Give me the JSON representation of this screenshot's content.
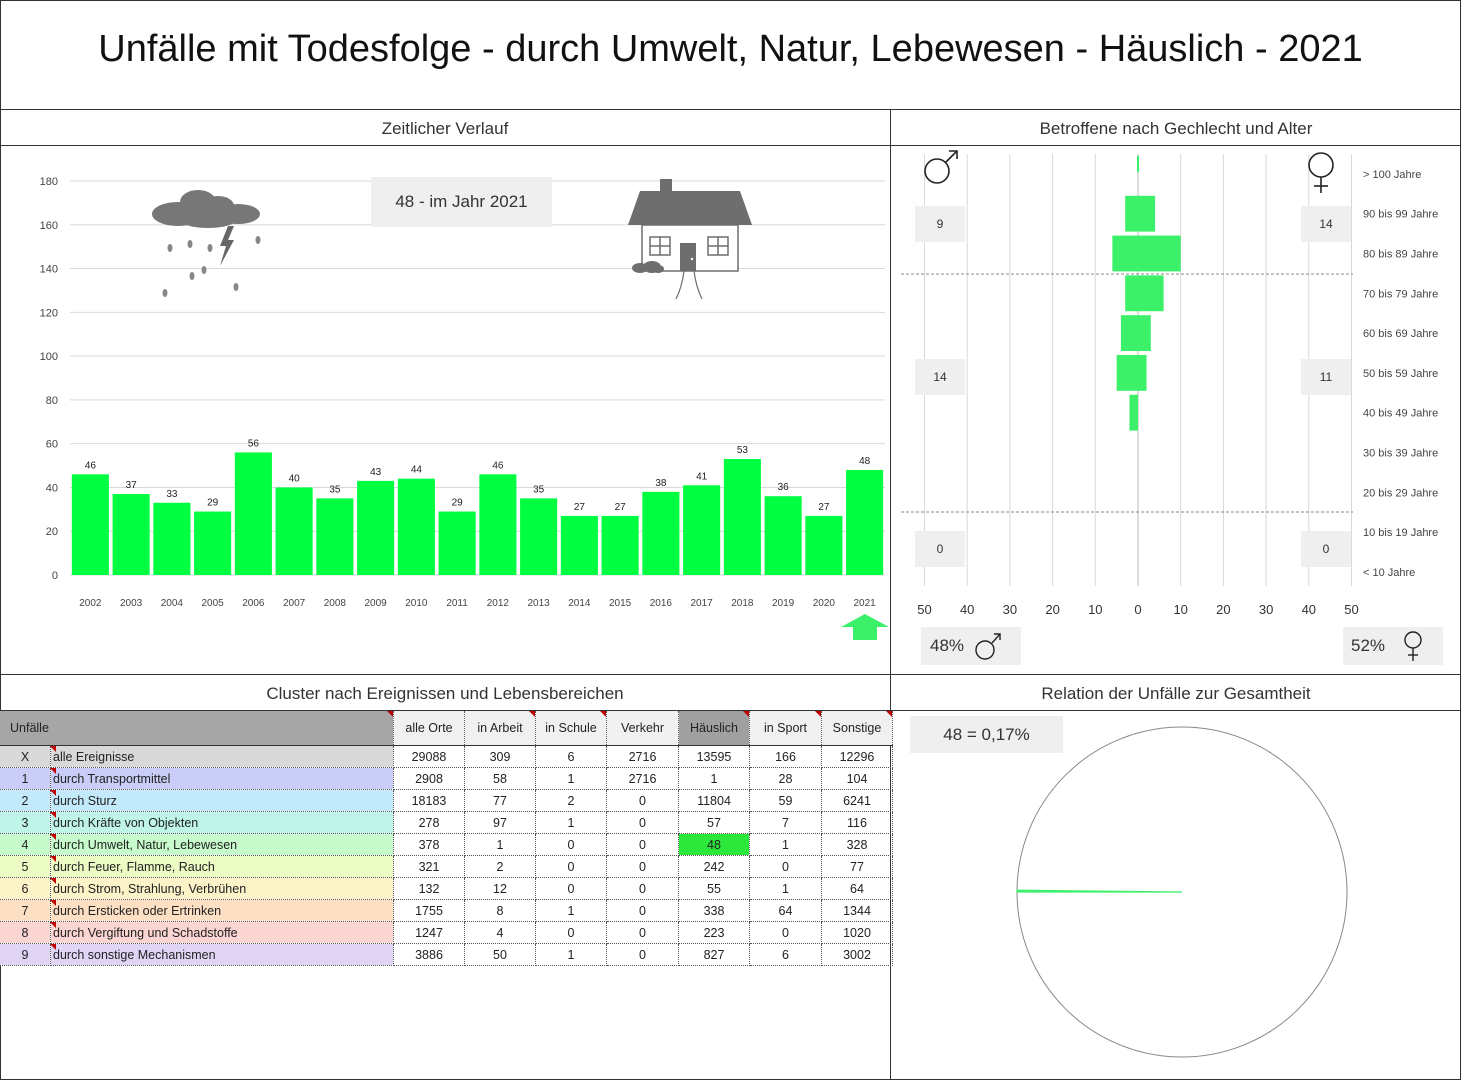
{
  "title": "Unfälle mit Todesfolge - durch Umwelt, Natur, Lebewesen - Häuslich - 2021",
  "sections": {
    "timeline": "Zeitlicher Verlauf",
    "pyramid": "Betroffene nach Gechlecht und Alter",
    "cluster": "Cluster nach Ereignissen und Lebensbereichen",
    "relation": "Relation der Unfälle zur Gesamtheit"
  },
  "colors": {
    "bar": "#00ff40",
    "pyramid": "#3cf06a",
    "highlight": "#2ce83a",
    "arrow": "#3cf06a",
    "icon_grey": "#6e6e6e"
  },
  "timeline_callout": "48 - im Jahr 2021",
  "icons": {
    "weather": "storm-cloud-icon",
    "house": "house-icon",
    "arrow": "up-arrow-icon",
    "male": "male-symbol-icon",
    "female": "female-symbol-icon"
  },
  "chart_data": [
    {
      "type": "bar",
      "categories": [
        "2002",
        "2003",
        "2004",
        "2005",
        "2006",
        "2007",
        "2008",
        "2009",
        "2010",
        "2011",
        "2012",
        "2013",
        "2014",
        "2015",
        "2016",
        "2017",
        "2018",
        "2019",
        "2020",
        "2021"
      ],
      "values": [
        46,
        37,
        33,
        29,
        56,
        40,
        35,
        43,
        44,
        29,
        46,
        35,
        27,
        27,
        38,
        41,
        53,
        36,
        27,
        48
      ],
      "ylim": [
        0,
        180
      ],
      "yticks": [
        0,
        20,
        40,
        60,
        80,
        100,
        120,
        140,
        160,
        180
      ],
      "grid": true
    },
    {
      "type": "bar",
      "orientation": "horizontal-pyramid",
      "categories": [
        "> 100 Jahre",
        "90 bis 99 Jahre",
        "80 bis 89 Jahre",
        "70 bis 79 Jahre",
        "60 bis 69 Jahre",
        "50 bis 59 Jahre",
        "40 bis 49 Jahre",
        "30 bis 39 Jahre",
        "20 bis 29 Jahre",
        "10 bis 19 Jahre",
        "< 10 Jahre"
      ],
      "series": [
        {
          "values": [
            0,
            3,
            6,
            3,
            4,
            5,
            2,
            0,
            0,
            0,
            0
          ]
        },
        {
          "values": [
            0,
            4,
            10,
            6,
            3,
            2,
            0,
            0,
            0,
            0,
            0
          ]
        }
      ],
      "xticks": [
        "50",
        "40",
        "30",
        "20",
        "10",
        "0",
        "10",
        "20",
        "30",
        "40",
        "50"
      ],
      "xlim": [
        -50,
        50
      ],
      "group_totals_male": [
        "9",
        "14",
        "0"
      ],
      "group_totals_female": [
        "14",
        "11",
        "0"
      ],
      "share_male": "48%",
      "share_female": "52%"
    },
    {
      "type": "pie",
      "values": [
        48,
        29040
      ],
      "label": "48 =  0,17%"
    }
  ],
  "table": {
    "columns": [
      "Unfälle",
      "alle Orte",
      "in Arbeit",
      "in Schule",
      "Verkehr",
      "Häuslich",
      "in Sport",
      "Sonstige"
    ],
    "rows": [
      {
        "idx": "X",
        "label": "alle Ereignisse",
        "cells": [
          "29088",
          "309",
          "6",
          "2716",
          "13595",
          "166",
          "12296"
        ],
        "color": "#d9d9d9"
      },
      {
        "idx": "1",
        "label": "durch Transportmittel",
        "cells": [
          "2908",
          "58",
          "1",
          "2716",
          "1",
          "28",
          "104"
        ],
        "color": "#c9cdf7"
      },
      {
        "idx": "2",
        "label": "durch Sturz",
        "cells": [
          "18183",
          "77",
          "2",
          "0",
          "11804",
          "59",
          "6241"
        ],
        "color": "#c3eafb"
      },
      {
        "idx": "3",
        "label": "durch Kräfte von Objekten",
        "cells": [
          "278",
          "97",
          "1",
          "0",
          "57",
          "7",
          "116"
        ],
        "color": "#bff5e9"
      },
      {
        "idx": "4",
        "label": "durch Umwelt, Natur, Lebewesen",
        "cells": [
          "378",
          "1",
          "0",
          "0",
          "48",
          "1",
          "328"
        ],
        "color": "#c8fbcc"
      },
      {
        "idx": "5",
        "label": "durch Feuer, Flamme, Rauch",
        "cells": [
          "321",
          "2",
          "0",
          "0",
          "242",
          "0",
          "77"
        ],
        "color": "#ecfbc4"
      },
      {
        "idx": "6",
        "label": "durch Strom, Strahlung, Verbrühen",
        "cells": [
          "132",
          "12",
          "0",
          "0",
          "55",
          "1",
          "64"
        ],
        "color": "#fdf3c9"
      },
      {
        "idx": "7",
        "label": "durch Ersticken oder Ertrinken",
        "cells": [
          "1755",
          "8",
          "1",
          "0",
          "338",
          "64",
          "1344"
        ],
        "color": "#fddfc4"
      },
      {
        "idx": "8",
        "label": "durch Vergiftung und Schadstoffe",
        "cells": [
          "1247",
          "4",
          "0",
          "0",
          "223",
          "0",
          "1020"
        ],
        "color": "#fbd5d2"
      },
      {
        "idx": "9",
        "label": "durch sonstige Mechanismen",
        "cells": [
          "3886",
          "50",
          "1",
          "0",
          "827",
          "6",
          "3002"
        ],
        "color": "#e0d5f5"
      }
    ]
  }
}
